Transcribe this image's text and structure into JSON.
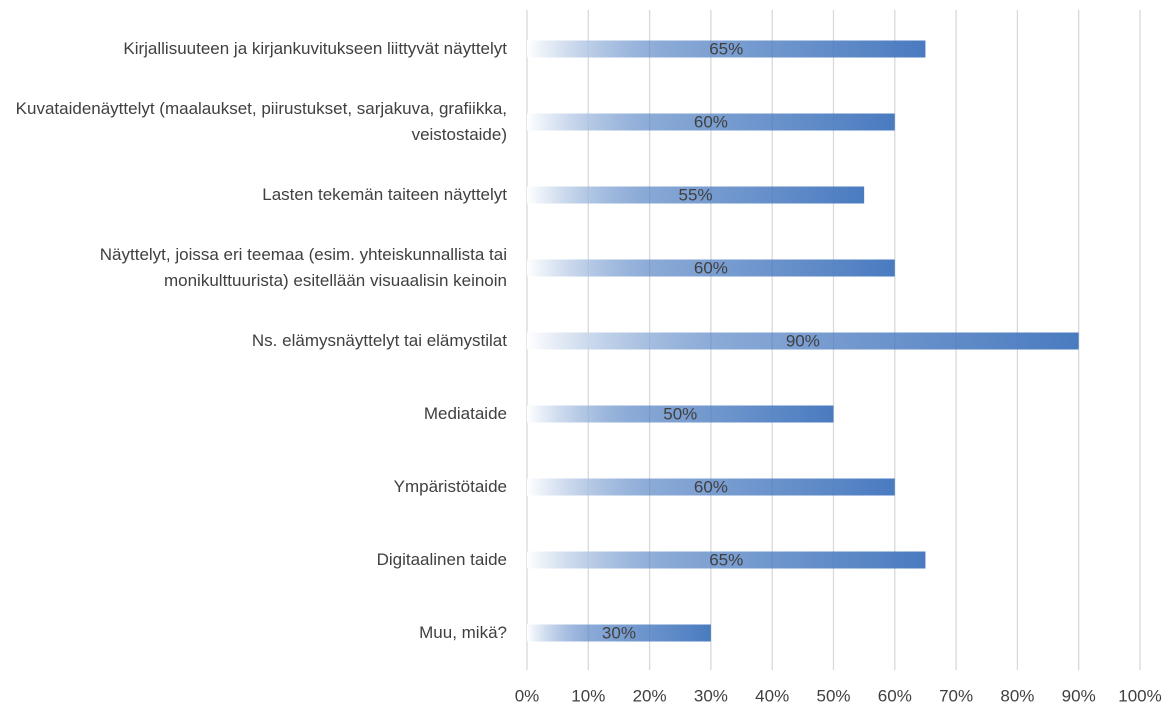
{
  "chart_data": {
    "type": "bar",
    "orientation": "horizontal",
    "categories": [
      "Kirjallisuuteen ja kirjankuvitukseen liittyvät näyttelyt",
      "Kuvataidenäyttelyt (maalaukset, piirustukset, sarjakuva, grafiikka, veistostaide)",
      "Lasten tekemän taiteen näyttelyt",
      "Näyttelyt, joissa eri teemaa (esim. yhteiskunnallista tai monikulttuurista) esitellään visuaalisin keinoin",
      "Ns. elämysnäyttelyt tai elämystilat",
      "Mediataide",
      "Ympäristötaide",
      "Digitaalinen taide",
      "Muu, mikä?"
    ],
    "values": [
      65,
      60,
      55,
      60,
      90,
      50,
      60,
      65,
      30
    ],
    "value_labels": [
      "65%",
      "60%",
      "55%",
      "60%",
      "90%",
      "50%",
      "60%",
      "65%",
      "30%"
    ],
    "color": "#4a7bc0",
    "xlim": [
      0,
      100
    ],
    "xticks": [
      {
        "value": 0,
        "label": "0%"
      },
      {
        "value": 10,
        "label": "10%"
      },
      {
        "value": 20,
        "label": "20%"
      },
      {
        "value": 30,
        "label": "30%"
      },
      {
        "value": 40,
        "label": "40%"
      },
      {
        "value": 50,
        "label": "50%"
      },
      {
        "value": 60,
        "label": "60%"
      },
      {
        "value": 70,
        "label": "70%"
      },
      {
        "value": 80,
        "label": "80%"
      },
      {
        "value": 90,
        "label": "90%"
      },
      {
        "value": 100,
        "label": "100%"
      }
    ],
    "grid": true
  }
}
